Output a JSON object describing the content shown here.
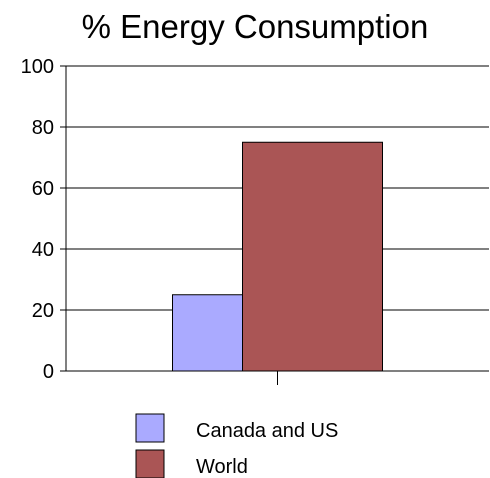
{
  "chart_data": {
    "type": "bar",
    "title": "% Energy Consumption",
    "xlabel": "",
    "ylabel": "",
    "categories": [
      ""
    ],
    "series": [
      {
        "name": "Canada and US",
        "values": [
          25
        ],
        "color": "#aaaaff"
      },
      {
        "name": "World",
        "values": [
          75
        ],
        "color": "#aa5555"
      }
    ],
    "ylim": [
      0,
      100
    ],
    "yticks": [
      0,
      20,
      40,
      60,
      80,
      100
    ],
    "grid": true,
    "legend": "bottom"
  }
}
